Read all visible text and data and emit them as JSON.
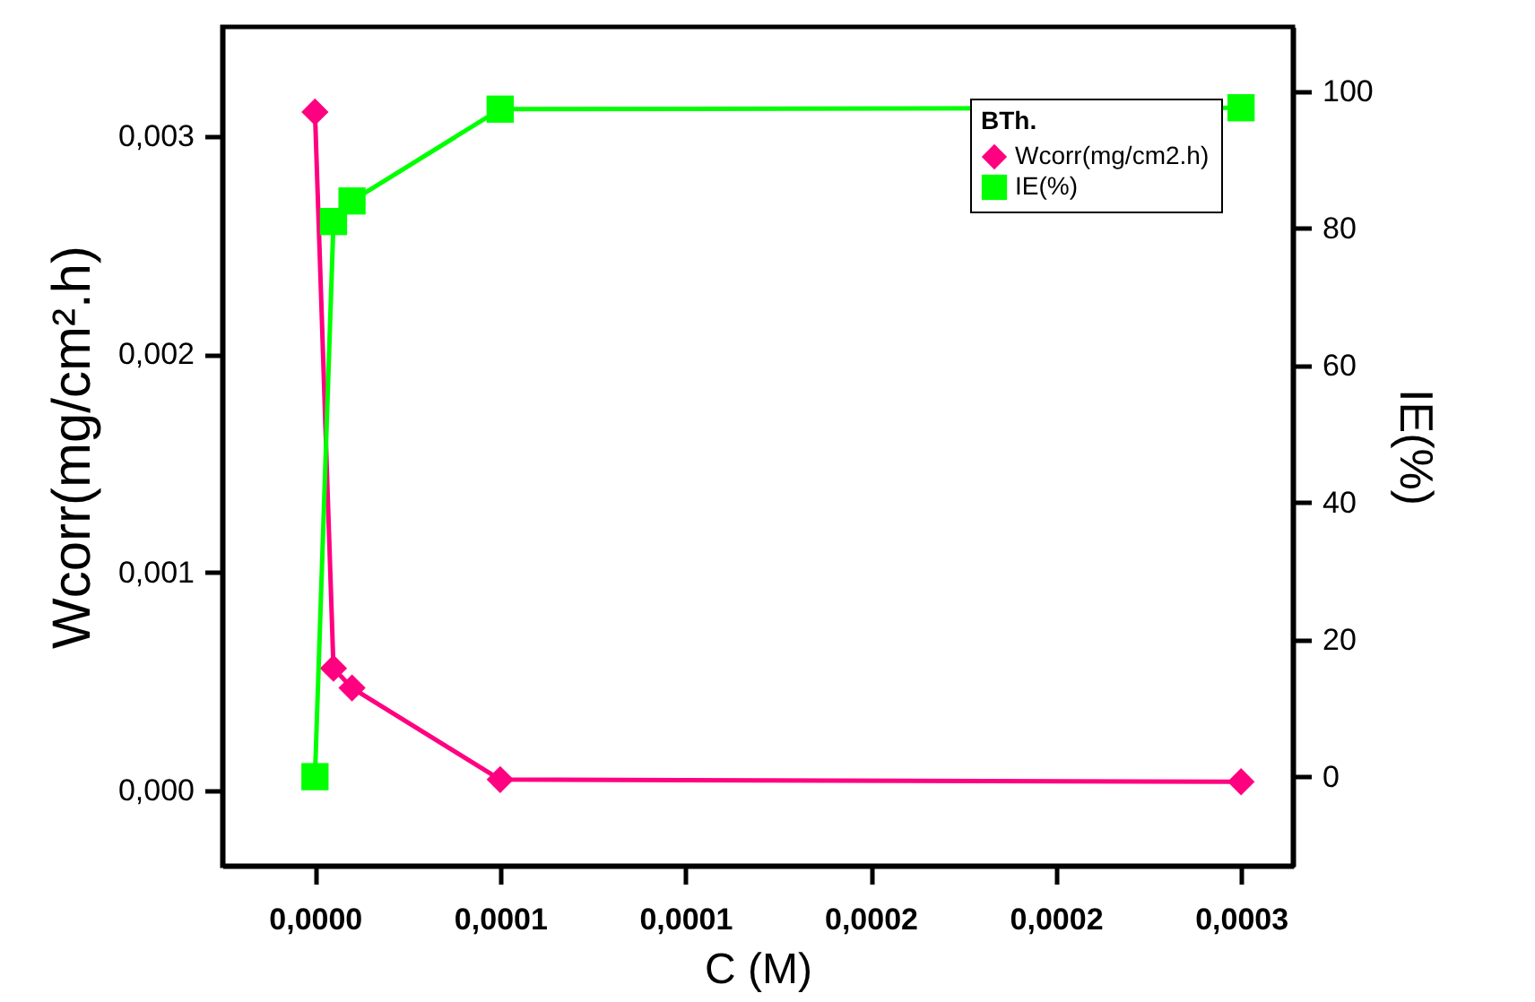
{
  "chart_data": {
    "type": "line",
    "xlabel": "C (M)",
    "ylabel": "Wcorr(mg/cm².h)",
    "y2label": "IE(%)",
    "legend_title": "BTh.",
    "x": [
      0,
      5e-06,
      1e-05,
      5e-05,
      0.00025
    ],
    "series": [
      {
        "name": "Wcorr(mg/cm2.h)",
        "color": "#ff0080",
        "marker": "diamond",
        "values": [
          0.00311,
          0.00056,
          0.00047,
          5e-05,
          4e-05
        ]
      },
      {
        "name": "IE(%)",
        "color": "#00ff00",
        "marker": "square",
        "axis": "y2",
        "values": [
          0,
          81,
          84,
          97.4,
          97.6
        ]
      }
    ],
    "xlim": [
      -2.5e-05,
      0.000264
    ],
    "xticks": [
      {
        "value": 0,
        "label": "0,0000"
      },
      {
        "value": 5e-05,
        "label": "0,0001"
      },
      {
        "value": 0.0001,
        "label": "0,0001"
      },
      {
        "value": 0.00015,
        "label": "0,0002"
      },
      {
        "value": 0.0002,
        "label": "0,0002"
      },
      {
        "value": 0.00025,
        "label": "0,0003"
      }
    ],
    "ylim": [
      -0.000345,
      0.0035
    ],
    "yticks": [
      {
        "value": 0,
        "label": "0,000"
      },
      {
        "value": 0.001,
        "label": "0,001"
      },
      {
        "value": 0.002,
        "label": "0,002"
      },
      {
        "value": 0.003,
        "label": "0,003"
      }
    ],
    "y2lim": [
      -13,
      109.4
    ],
    "y2ticks": [
      0,
      20,
      40,
      60,
      80,
      100
    ],
    "legend": "top right",
    "grid": false
  }
}
